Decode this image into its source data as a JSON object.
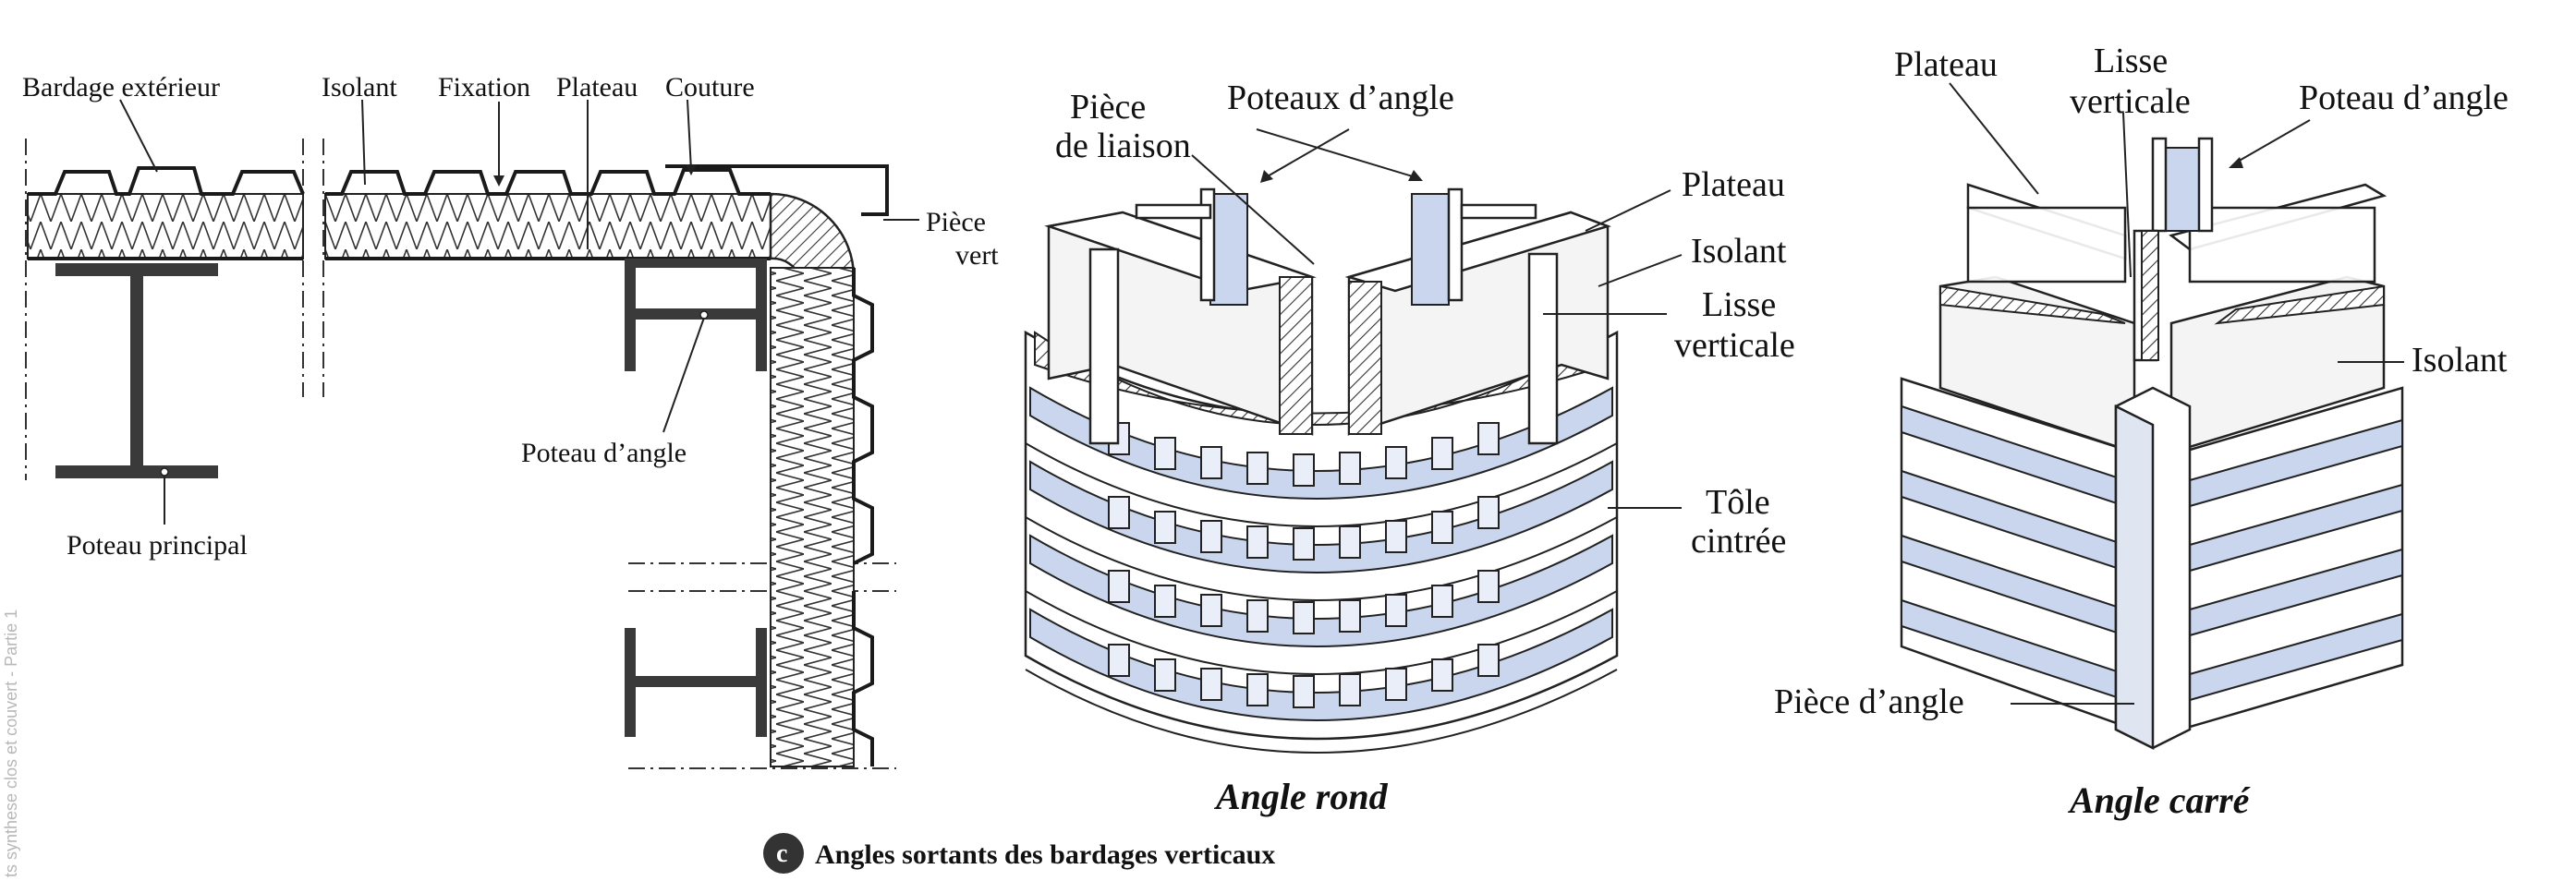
{
  "sidebar_text": "ts synthese clos et couvert - Partie 1",
  "left_section": {
    "labels": {
      "bardage_exterieur": "Bardage extérieur",
      "isolant": "Isolant",
      "fixation": "Fixation",
      "plateau": "Plateau",
      "couture": "Couture",
      "piece_line1": "Pièce",
      "piece_line2": "vert",
      "poteau_angle": "Poteau d’angle",
      "poteau_principal": "Poteau principal"
    }
  },
  "angle_rond": {
    "labels": {
      "piece_liaison_1": "Pièce",
      "piece_liaison_2": "de liaison",
      "poteaux_angle": "Poteaux d’angle",
      "plateau": "Plateau",
      "isolant": "Isolant",
      "lisse_1": "Lisse",
      "lisse_2": "verticale",
      "tole_1": "Tôle",
      "tole_2": "cintrée"
    },
    "caption": "Angle rond"
  },
  "angle_carre": {
    "labels": {
      "plateau": "Plateau",
      "lisse_1": "Lisse",
      "lisse_2": "verticale",
      "poteau_angle": "Poteau d’angle",
      "isolant": "Isolant",
      "piece_angle": "Pièce d’angle"
    },
    "caption": "Angle carré"
  },
  "figure": {
    "marker": "c",
    "caption": "Angles sortants des bardages verticaux"
  }
}
